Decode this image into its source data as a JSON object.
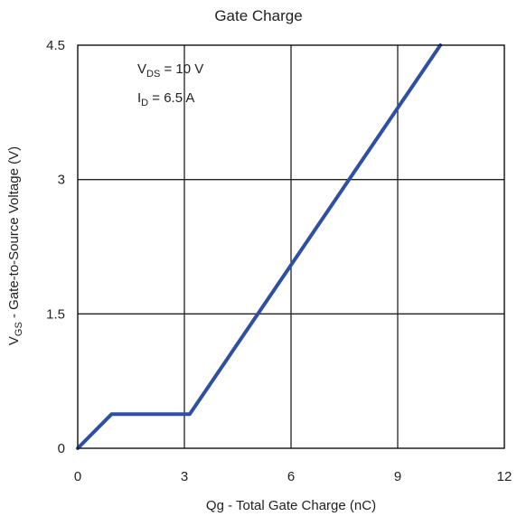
{
  "chart_data": {
    "type": "line",
    "title": "Gate Charge",
    "xlabel": "Qg - Total Gate Charge (nC)",
    "ylabel": {
      "main": "V",
      "sub": "GS",
      "rest": " - Gate-to-Source Voltage (V)"
    },
    "xlim": [
      0,
      12
    ],
    "ylim": [
      0,
      4.5
    ],
    "xticks": [
      "0",
      "3",
      "6",
      "9",
      "12"
    ],
    "yticks": [
      "0",
      "1.5",
      "3",
      "4.5"
    ],
    "grid": true,
    "line_color": "#2e4fa6",
    "series": [
      {
        "x": [
          0,
          0.95,
          3.15,
          10.2
        ],
        "y": [
          0,
          0.38,
          0.38,
          4.5
        ]
      }
    ],
    "annotations": [
      {
        "main": "V",
        "sub": "DS",
        "rest": " = 10 V"
      },
      {
        "main": "I",
        "sub": "D",
        "rest": " = 6.5 A"
      }
    ]
  }
}
